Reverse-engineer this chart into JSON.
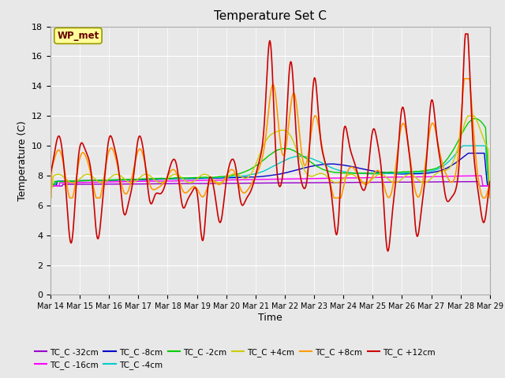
{
  "title": "Temperature Set C",
  "xlabel": "Time",
  "ylabel": "Temperature (C)",
  "ylim": [
    0,
    18
  ],
  "yticks": [
    0,
    2,
    4,
    6,
    8,
    10,
    12,
    14,
    16,
    18
  ],
  "background_color": "#e8e8e8",
  "plot_bg_color": "#e8e8e8",
  "series_colors": {
    "TC_C -32cm": "#9900cc",
    "TC_C -16cm": "#ff00ff",
    "TC_C -8cm": "#0000cc",
    "TC_C -4cm": "#00cccc",
    "TC_C -2cm": "#00cc00",
    "TC_C +4cm": "#cccc00",
    "TC_C +8cm": "#ff9900",
    "TC_C +12cm": "#cc0000"
  },
  "x_labels": [
    "Mar 14",
    "Mar 15",
    "Mar 16",
    "Mar 17",
    "Mar 18",
    "Mar 19",
    "Mar 20",
    "Mar 21",
    "Mar 22",
    "Mar 23",
    "Mar 24",
    "Mar 25",
    "Mar 26",
    "Mar 27",
    "Mar 28",
    "Mar 29"
  ],
  "wp_met_box_color": "#ffff99",
  "wp_met_text_color": "#660000",
  "figsize": [
    6.4,
    4.8
  ],
  "dpi": 100
}
